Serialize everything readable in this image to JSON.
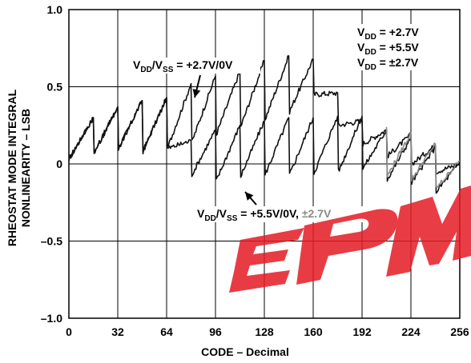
{
  "chart_data": {
    "type": "line",
    "title": "",
    "xlabel": "CODE – Decimal",
    "ylabel_lines": [
      "RHEOSTAT MODE INTEGRAL",
      "NONLINEARITY – LSB"
    ],
    "xlim": [
      0,
      256
    ],
    "ylim": [
      -1.0,
      1.0
    ],
    "x_ticks": [
      0,
      32,
      64,
      96,
      128,
      160,
      192,
      224,
      256
    ],
    "x_tick_labels": [
      "0",
      "32",
      "64",
      "96",
      "128",
      "160",
      "192",
      "224",
      "256"
    ],
    "y_ticks": [
      1.0,
      0.5,
      0,
      -0.5,
      -1.0
    ],
    "y_tick_labels": [
      "1.0",
      "0.5",
      "0",
      "–0.5",
      "–1.0"
    ],
    "grid": true,
    "legend": {
      "placement": "top-right",
      "entries": [
        {
          "main": "V",
          "sub": "DD",
          "rest": " = +2.7V"
        },
        {
          "main": "V",
          "sub": "DD",
          "rest": " = +5.5V"
        },
        {
          "main": "V",
          "sub": "DD",
          "rest": " = ±2.7V"
        }
      ]
    },
    "annotations": [
      {
        "id": "upper",
        "text_parts": [
          "V",
          "DD",
          "/V",
          "SS",
          " = +2.7V/0V"
        ],
        "points_to_x": 80,
        "points_to_y": 0.45
      },
      {
        "id": "lower",
        "text_parts": [
          "V",
          "DD",
          "/V",
          "SS",
          " = +5.5V/0V, "
        ],
        "gray_part": "±2.7V",
        "points_to_x": 114,
        "points_to_y": -0.16
      }
    ],
    "series": [
      {
        "id": "upper",
        "color": "#111111",
        "x": [
          0,
          16,
          16.5,
          32,
          32.5,
          48,
          48.5,
          64,
          64.5,
          80,
          80.5,
          96,
          96.5,
          112,
          112.5,
          128,
          128.5,
          144,
          144.5,
          160,
          160.5,
          176,
          176.5,
          192,
          192.5,
          208,
          208.5,
          224,
          224.5,
          240,
          240.5,
          256
        ],
        "y": [
          0.03,
          0.3,
          0.07,
          0.37,
          0.1,
          0.41,
          0.08,
          0.43,
          0.1,
          0.52,
          0.14,
          0.57,
          0.19,
          0.6,
          0.24,
          0.67,
          0.29,
          0.7,
          0.34,
          0.68,
          0.45,
          0.46,
          0.25,
          0.28,
          0.13,
          0.22,
          0.05,
          0.19,
          0.0,
          0.12,
          -0.05,
          0.0
        ]
      },
      {
        "id": "lower",
        "color": "#111111",
        "x": [
          0,
          16,
          16.5,
          32,
          32.5,
          48,
          48.5,
          64,
          64.5,
          80,
          80.5,
          96,
          96.5,
          112,
          112.5,
          128,
          128.5,
          144,
          144.5,
          160,
          160.5,
          176,
          176.5,
          192,
          192.5,
          208,
          208.5,
          224,
          224.5,
          240,
          240.5,
          256
        ],
        "y": [
          0.03,
          0.3,
          0.07,
          0.37,
          0.1,
          0.41,
          0.08,
          0.43,
          0.1,
          0.15,
          -0.07,
          0.22,
          -0.11,
          0.25,
          -0.08,
          0.28,
          -0.07,
          0.3,
          -0.07,
          0.3,
          -0.06,
          0.31,
          -0.05,
          0.31,
          -0.03,
          0.22,
          -0.1,
          0.17,
          -0.12,
          0.11,
          -0.18,
          0.01
        ]
      },
      {
        "id": "lower-gray",
        "color": "#8a8a8a",
        "x": [
          208,
          208.5,
          224,
          224.5,
          240,
          240.5,
          256
        ],
        "y": [
          0.24,
          -0.08,
          0.2,
          -0.1,
          0.13,
          -0.16,
          0.02
        ]
      }
    ],
    "watermark": "EPM"
  }
}
